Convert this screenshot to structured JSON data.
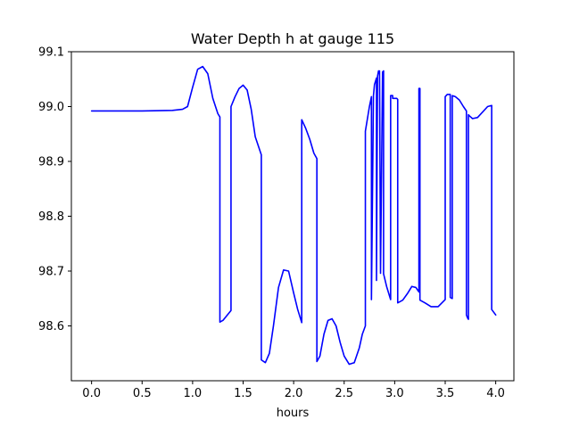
{
  "chart_data": {
    "type": "line",
    "title": "Water Depth h at gauge 115",
    "xlabel": "hours",
    "ylabel": "",
    "xlim": [
      -0.2,
      4.18
    ],
    "ylim": [
      98.5,
      99.1
    ],
    "xticks": [
      0.0,
      0.5,
      1.0,
      1.5,
      2.0,
      2.5,
      3.0,
      3.5,
      4.0
    ],
    "xtick_labels": [
      "0.0",
      "0.5",
      "1.0",
      "1.5",
      "2.0",
      "2.5",
      "3.0",
      "3.5",
      "4.0"
    ],
    "yticks": [
      98.6,
      98.7,
      98.8,
      98.9,
      99.0,
      99.1
    ],
    "ytick_labels": [
      "98.6",
      "98.7",
      "98.8",
      "98.9",
      "99.0",
      "99.1"
    ],
    "grid": false,
    "color": "#0000ff",
    "series": [
      {
        "x": [
          0.0,
          0.5,
          0.8,
          0.9,
          0.95,
          1.0,
          1.05,
          1.1,
          1.15,
          1.2,
          1.25,
          1.27,
          1.27,
          1.3,
          1.38,
          1.38,
          1.42,
          1.46,
          1.5,
          1.54,
          1.58,
          1.62,
          1.68,
          1.68,
          1.72,
          1.76,
          1.8,
          1.85,
          1.9,
          1.95,
          2.0,
          2.04,
          2.08,
          2.08,
          2.12,
          2.16,
          2.2,
          2.23,
          2.23,
          2.26,
          2.3,
          2.34,
          2.38,
          2.42,
          2.46,
          2.5,
          2.55,
          2.6,
          2.65,
          2.68,
          2.71,
          2.71,
          2.75,
          2.77,
          2.77,
          2.79,
          2.8,
          2.82,
          2.82,
          2.83,
          2.84,
          2.85,
          2.86,
          2.88,
          2.89,
          2.89,
          2.92,
          2.96,
          2.96,
          2.98,
          2.98,
          3.02,
          3.03,
          3.03,
          3.08,
          3.13,
          3.17,
          3.21,
          3.24,
          3.24,
          3.25,
          3.25,
          3.3,
          3.36,
          3.43,
          3.5,
          3.5,
          3.52,
          3.55,
          3.55,
          3.57,
          3.57,
          3.6,
          3.64,
          3.68,
          3.71,
          3.71,
          3.72,
          3.73,
          3.73,
          3.74,
          3.77,
          3.82,
          3.87,
          3.92,
          3.96,
          3.96,
          4.0
        ],
        "y": [
          98.992,
          98.992,
          98.993,
          98.995,
          99.0,
          99.035,
          99.068,
          99.073,
          99.06,
          99.015,
          98.987,
          98.981,
          98.607,
          98.61,
          98.628,
          99.0,
          99.018,
          99.033,
          99.039,
          99.03,
          98.995,
          98.945,
          98.912,
          98.538,
          98.533,
          98.55,
          98.6,
          98.67,
          98.702,
          98.7,
          98.66,
          98.63,
          98.606,
          98.976,
          98.96,
          98.94,
          98.915,
          98.905,
          98.535,
          98.545,
          98.585,
          98.61,
          98.613,
          98.6,
          98.57,
          98.545,
          98.53,
          98.533,
          98.56,
          98.585,
          98.6,
          98.955,
          99.0,
          99.018,
          98.648,
          99.02,
          99.04,
          99.052,
          98.683,
          99.055,
          99.065,
          99.065,
          98.696,
          99.063,
          99.065,
          98.695,
          98.672,
          98.648,
          99.02,
          99.02,
          99.015,
          99.015,
          99.013,
          98.642,
          98.647,
          98.66,
          98.672,
          98.67,
          98.662,
          99.033,
          99.033,
          98.647,
          98.642,
          98.635,
          98.635,
          98.648,
          99.018,
          99.022,
          99.022,
          98.652,
          98.65,
          99.02,
          99.018,
          99.012,
          99.0,
          98.992,
          98.62,
          98.615,
          98.612,
          98.985,
          98.983,
          98.978,
          98.98,
          98.99,
          99.0,
          99.002,
          98.63,
          98.62
        ]
      }
    ]
  }
}
